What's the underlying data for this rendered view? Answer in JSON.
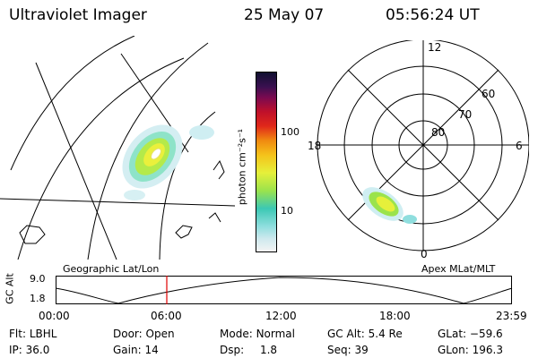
{
  "header": {
    "title": "Ultraviolet Imager",
    "date": "25 May 07",
    "time": "05:56:24 UT"
  },
  "colorbar": {
    "label": "photon cm⁻²s⁻¹",
    "ticks": [
      "100",
      "10"
    ],
    "scale": "log",
    "colors": [
      "#f4f4f4",
      "#cfe9ee",
      "#8fdede",
      "#3cc8b4",
      "#9be34c",
      "#e6f03a",
      "#f5c21a",
      "#f08a10",
      "#e0281a",
      "#b0102a",
      "#7a0a50",
      "#2a0a45"
    ]
  },
  "geo_panel": {
    "label": "Geographic Lat/Lon"
  },
  "polar_panel": {
    "label": "Apex  MLat/MLT",
    "mlt_labels": [
      "12",
      "18",
      "6",
      "0"
    ],
    "lat_labels": [
      "60",
      "70",
      "80"
    ]
  },
  "altitude_plot": {
    "ylabel": "GC Alt",
    "yticks": [
      "9.0",
      "1.8"
    ],
    "xticks": [
      "00:00",
      "06:00",
      "12:00",
      "18:00",
      "23:59"
    ],
    "current_time_color": "#e00000"
  },
  "status": {
    "flt_label": "Flt:",
    "flt_value": "LBHL",
    "ip_label": "IP:",
    "ip_value": "36.0",
    "door_label": "Door:",
    "door_value": "Open",
    "gain_label": "Gain:",
    "gain_value": "14",
    "mode_label": "Mode:",
    "mode_value": "Normal",
    "dsp_label": "Dsp:",
    "dsp_value": "1.8",
    "gcalt_label": "GC Alt:",
    "gcalt_value": "5.4 Re",
    "seq_label": "Seq:",
    "seq_value": "39",
    "glat_label": "GLat:",
    "glat_value": "−59.6",
    "glon_label": "GLon:",
    "glon_value": "196.3"
  }
}
